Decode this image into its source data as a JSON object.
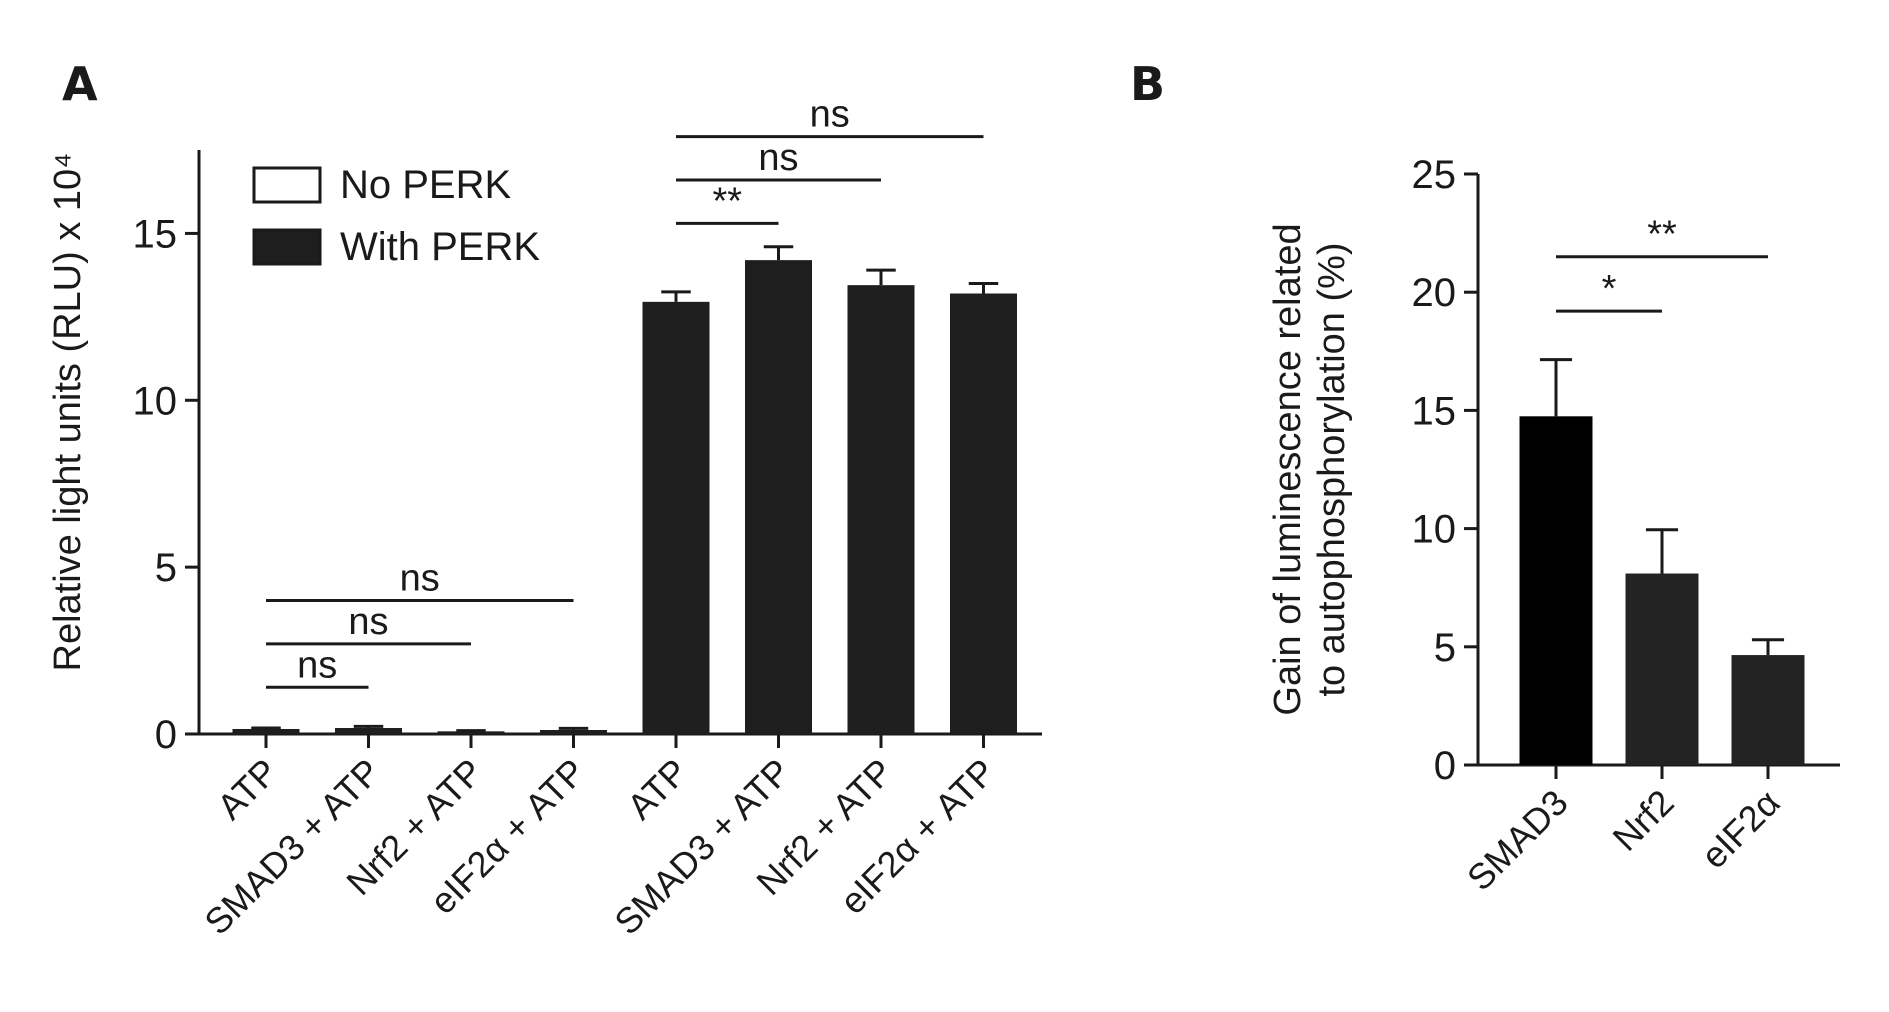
{
  "chart_data": [
    {
      "type": "bar",
      "panel": "A",
      "categories": [
        "ATP",
        "SMAD3 + ATP",
        "Nrf2 + ATP",
        "eIF2α + ATP",
        "ATP",
        "SMAD3 + ATP",
        "Nrf2 + ATP",
        "eIF2α + ATP"
      ],
      "values": [
        0.15,
        0.18,
        0.08,
        0.12,
        12.95,
        14.2,
        13.45,
        13.2
      ],
      "errors": [
        0.03,
        0.05,
        0.02,
        0.05,
        0.3,
        0.4,
        0.45,
        0.3
      ],
      "colors": [
        "#1e1e1e",
        "#1e1e1e",
        "#1e1e1e",
        "#1e1e1e",
        "#1e1e1e",
        "#1e1e1e",
        "#1e1e1e",
        "#1e1e1e"
      ],
      "ylabel": "Relative light units (RLU) x 10⁴",
      "ylim": [
        0,
        17.5
      ],
      "yticks": [
        0,
        5,
        10,
        15
      ],
      "legend": [
        {
          "name": "No PERK",
          "color": "#ffffff"
        },
        {
          "name": "With PERK",
          "color": "#1e1e1e"
        }
      ],
      "annotations": [
        {
          "from": 0,
          "to": 1,
          "label": "ns",
          "y": 1.4
        },
        {
          "from": 0,
          "to": 2,
          "label": "ns",
          "y": 2.7
        },
        {
          "from": 0,
          "to": 3,
          "label": "ns",
          "y": 4.0
        },
        {
          "from": 4,
          "to": 5,
          "label": "**",
          "y": 15.3
        },
        {
          "from": 4,
          "to": 6,
          "label": "ns",
          "y": 16.6
        },
        {
          "from": 4,
          "to": 7,
          "label": "ns",
          "y": 17.9
        }
      ]
    },
    {
      "type": "bar",
      "panel": "B",
      "categories": [
        "SMAD3",
        "Nrf2",
        "eIF2α"
      ],
      "values": [
        14.75,
        8.1,
        4.65
      ],
      "errors": [
        2.4,
        1.85,
        0.65
      ],
      "colors": [
        "#000000",
        "#232323",
        "#232323"
      ],
      "ylabel": [
        "Gain of luminescence related",
        "to autophosphorylation (%)"
      ],
      "ylim": [
        0,
        25
      ],
      "yticks": [
        0,
        5,
        10,
        15,
        20,
        25
      ],
      "annotations": [
        {
          "from": 0,
          "to": 1,
          "label": "*",
          "y": 19.2
        },
        {
          "from": 0,
          "to": 2,
          "label": "**",
          "y": 21.5
        }
      ]
    }
  ]
}
